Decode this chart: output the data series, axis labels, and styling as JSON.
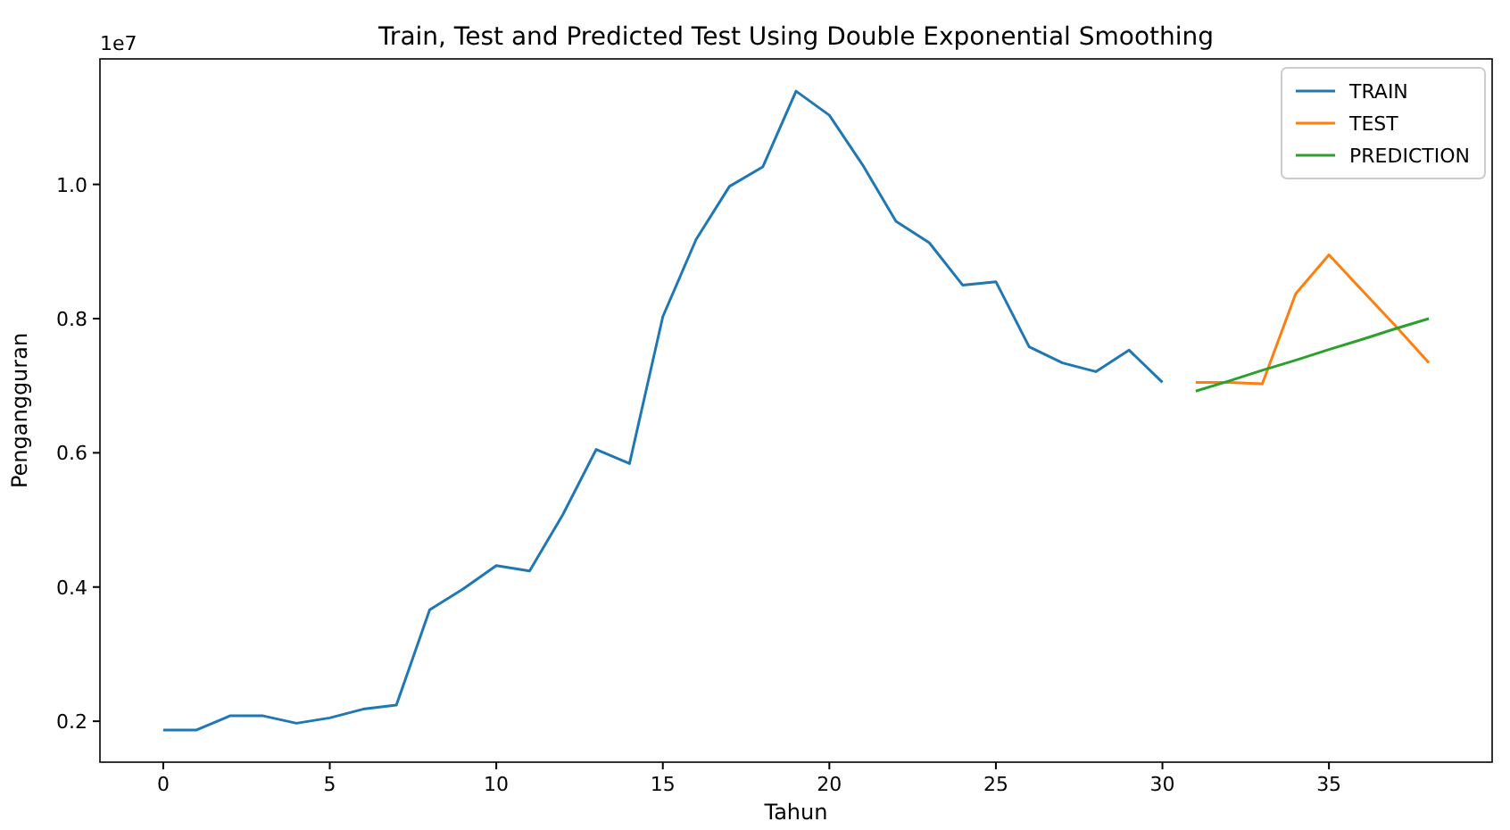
{
  "chart_data": {
    "type": "line",
    "title": "Train, Test and Predicted Test Using Double Exponential Smoothing",
    "xlabel": "Tahun",
    "ylabel": "Pengangguran",
    "annotations": [
      "1e7"
    ],
    "xlim": [
      -1.9,
      39.9
    ],
    "xticks": [
      0,
      5,
      10,
      15,
      20,
      25,
      30,
      35
    ],
    "ylim": [
      0.139,
      1.187
    ],
    "yticks": [
      {
        "value": 0.2,
        "label": "0.2"
      },
      {
        "value": 0.4,
        "label": "0.4"
      },
      {
        "value": 0.6,
        "label": "0.6"
      },
      {
        "value": 0.8,
        "label": "0.8"
      },
      {
        "value": 1.0,
        "label": "1.0"
      }
    ],
    "grid": false,
    "legend": "top right",
    "marker": "none",
    "line_style": "solid",
    "series": [
      {
        "name": "TRAIN",
        "color": "#1f77b4",
        "x": [
          0,
          1,
          2,
          3,
          4,
          5,
          6,
          7,
          8,
          9,
          10,
          11,
          12,
          13,
          14,
          15,
          16,
          17,
          18,
          19,
          20,
          21,
          22,
          23,
          24,
          25,
          26,
          27,
          28,
          29,
          30
        ],
        "values": [
          0.187,
          0.187,
          0.208,
          0.208,
          0.197,
          0.205,
          0.218,
          0.224,
          0.366,
          0.397,
          0.432,
          0.424,
          0.508,
          0.605,
          0.584,
          0.803,
          0.918,
          0.997,
          1.026,
          1.139,
          1.103,
          1.029,
          0.945,
          0.913,
          0.85,
          0.855,
          0.758,
          0.734,
          0.721,
          0.753,
          0.705
        ]
      },
      {
        "name": "TEST",
        "color": "#ff7f0e",
        "x": [
          31,
          32,
          33,
          34,
          35,
          36,
          37,
          38
        ],
        "values": [
          0.705,
          0.705,
          0.703,
          0.837,
          0.895,
          0.842,
          0.789,
          0.734
        ]
      },
      {
        "name": "PREDICTION",
        "color": "#2ca02c",
        "x": [
          31,
          32,
          33,
          34,
          35,
          36,
          37,
          38
        ],
        "values": [
          0.692,
          0.707,
          0.723,
          0.738,
          0.754,
          0.769,
          0.785,
          0.8
        ]
      }
    ]
  }
}
